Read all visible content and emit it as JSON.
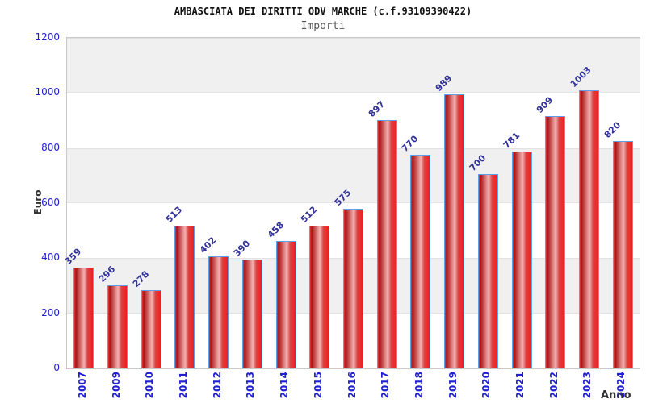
{
  "header": {
    "title": "AMBASCIATA DEI DIRITTI ODV MARCHE (c.f.93109390422)",
    "subtitle": "Importi"
  },
  "chart_data": {
    "type": "bar",
    "title": "AMBASCIATA DEI DIRITTI ODV MARCHE (c.f.93109390422)",
    "subtitle": "Importi",
    "xlabel": "Anno",
    "ylabel": "Euro",
    "categories": [
      "2007",
      "2009",
      "2010",
      "2011",
      "2012",
      "2013",
      "2014",
      "2015",
      "2016",
      "2017",
      "2018",
      "2019",
      "2020",
      "2021",
      "2022",
      "2023",
      "2024"
    ],
    "values": [
      359,
      296,
      278,
      513,
      402,
      390,
      458,
      512,
      575,
      897,
      770,
      989,
      700,
      781,
      909,
      1003,
      820
    ],
    "ylim": [
      0,
      1200
    ],
    "ytick_step": 200,
    "yticks": [
      0,
      200,
      400,
      600,
      800,
      1000,
      1200
    ],
    "grid": "alternating-horizontal-bands",
    "legend": "none",
    "value_labels": "above-bars-rotated-45"
  },
  "colors": {
    "bar_fill_main": "#e02222",
    "bar_fill_dark": "#a81414",
    "bar_fill_light": "#f2b2b2",
    "bar_border": "#5f9ee8",
    "tick_label_blue": "#2020d0",
    "value_label_navy": "#32329b",
    "title_color": "#111111",
    "subtitle_color": "#555555",
    "axis_title_color": "#333333",
    "band_gray": "#f0f0f0",
    "plot_border": "#c8c8c8",
    "background": "#ffffff"
  }
}
